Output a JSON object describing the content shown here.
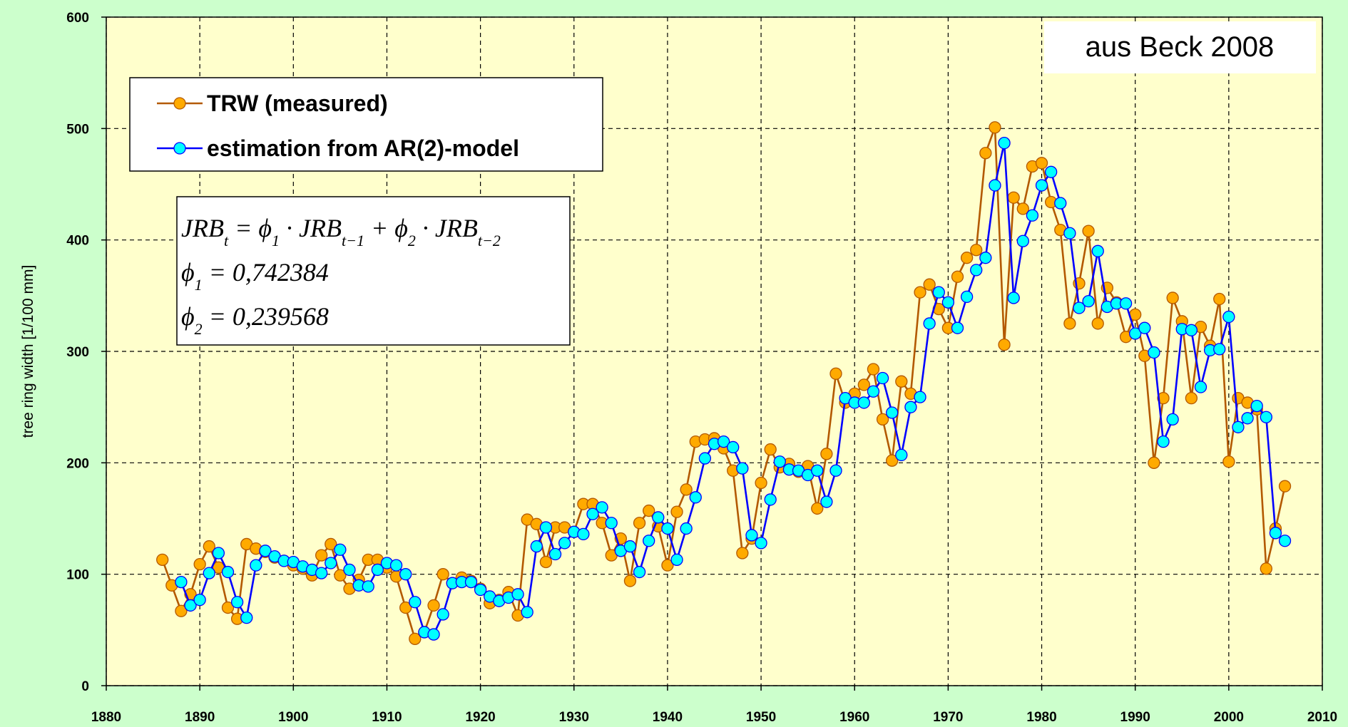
{
  "chart_data": {
    "type": "line",
    "y_label": "tree ring width [1/100 mm]",
    "annotation": "aus Beck 2008",
    "equation_lines": [
      [
        {
          "text": "JRB",
          "sub": "t"
        },
        {
          "text": " = ϕ",
          "sub": "1"
        },
        {
          "text": " · JRB",
          "sub": "t−1"
        },
        {
          "text": " + ϕ",
          "sub": "2"
        },
        {
          "text": " · JRB",
          "sub": "t−2"
        }
      ],
      [
        {
          "text": "ϕ",
          "sub": "1"
        },
        {
          "text": " = 0,742384"
        }
      ],
      [
        {
          "text": "ϕ",
          "sub": "2"
        },
        {
          "text": " = 0,239568"
        }
      ]
    ],
    "x": [
      1886,
      1887,
      1888,
      1889,
      1890,
      1891,
      1892,
      1893,
      1894,
      1895,
      1896,
      1897,
      1898,
      1899,
      1900,
      1901,
      1902,
      1903,
      1904,
      1905,
      1906,
      1907,
      1908,
      1909,
      1910,
      1911,
      1912,
      1913,
      1914,
      1915,
      1916,
      1917,
      1918,
      1919,
      1920,
      1921,
      1922,
      1923,
      1924,
      1925,
      1926,
      1927,
      1928,
      1929,
      1930,
      1931,
      1932,
      1933,
      1934,
      1935,
      1936,
      1937,
      1938,
      1939,
      1940,
      1941,
      1942,
      1943,
      1944,
      1945,
      1946,
      1947,
      1948,
      1949,
      1950,
      1951,
      1952,
      1953,
      1954,
      1955,
      1956,
      1957,
      1958,
      1959,
      1960,
      1961,
      1962,
      1963,
      1964,
      1965,
      1966,
      1967,
      1968,
      1969,
      1970,
      1971,
      1972,
      1973,
      1974,
      1975,
      1976,
      1977,
      1978,
      1979,
      1980,
      1981,
      1982,
      1983,
      1984,
      1985,
      1986,
      1987,
      1988,
      1989,
      1990,
      1991,
      1992,
      1993,
      1994,
      1995,
      1996,
      1997,
      1998,
      1999,
      2000,
      2001,
      2002,
      2003,
      2004,
      2005,
      2006
    ],
    "series": [
      {
        "name": "TRW (measured)",
        "color": "#b35900",
        "marker_color": "#ffaa00",
        "values": [
          113,
          90,
          67,
          82,
          109,
          125,
          106,
          70,
          60,
          127,
          123,
          120,
          115,
          112,
          108,
          105,
          99,
          117,
          127,
          99,
          87,
          95,
          113,
          113,
          106,
          98,
          70,
          42,
          48,
          72,
          100,
          92,
          97,
          94,
          87,
          74,
          77,
          84,
          63,
          149,
          145,
          111,
          142,
          142,
          138,
          163,
          163,
          146,
          117,
          132,
          94,
          146,
          157,
          143,
          108,
          156,
          176,
          219,
          221,
          222,
          213,
          193,
          119,
          132,
          182,
          212,
          196,
          199,
          192,
          197,
          159,
          208,
          280,
          254,
          262,
          270,
          284,
          239,
          202,
          273,
          262,
          353,
          360,
          338,
          321,
          367,
          384,
          391,
          478,
          501,
          306,
          438,
          428,
          466,
          469,
          434,
          409,
          325,
          361,
          408,
          325,
          357,
          344,
          313,
          333,
          296,
          200,
          258,
          348,
          327,
          258,
          322,
          305,
          347,
          201,
          258,
          254,
          248,
          105,
          141,
          179
        ]
      },
      {
        "name": "estimation from AR(2)-model",
        "color": "#0000ff",
        "marker_color": "#00ffff",
        "values": [
          null,
          null,
          93,
          72,
          77,
          101,
          119,
          102,
          75,
          61,
          108,
          121,
          116,
          112,
          111,
          107,
          104,
          101,
          110,
          122,
          104,
          90,
          89,
          104,
          110,
          108,
          100,
          75,
          48,
          46,
          64,
          92,
          93,
          93,
          86,
          80,
          76,
          79,
          82,
          66,
          125,
          142,
          118,
          128,
          138,
          136,
          154,
          160,
          146,
          121,
          125,
          102,
          130,
          151,
          141,
          113,
          141,
          169,
          204,
          217,
          219,
          214,
          195,
          135,
          128,
          167,
          201,
          194,
          193,
          189,
          193,
          165,
          193,
          258,
          254,
          254,
          264,
          276,
          245,
          207,
          250,
          259,
          325,
          353,
          344,
          321,
          349,
          373,
          384,
          449,
          487,
          348,
          399,
          422,
          449,
          461,
          433,
          406,
          339,
          345,
          390,
          340,
          343,
          343,
          316,
          321,
          299,
          219,
          239,
          320,
          319,
          268,
          301,
          302,
          331,
          232,
          240,
          251,
          241,
          137,
          130
        ]
      }
    ],
    "xlim": [
      1880,
      2010
    ],
    "xticks": [
      1880,
      1890,
      1900,
      1910,
      1920,
      1930,
      1940,
      1950,
      1960,
      1970,
      1980,
      1990,
      2000,
      2010
    ],
    "ylim": [
      0,
      600
    ],
    "yticks": [
      0,
      100,
      200,
      300,
      400,
      500,
      600
    ],
    "grid": true
  }
}
